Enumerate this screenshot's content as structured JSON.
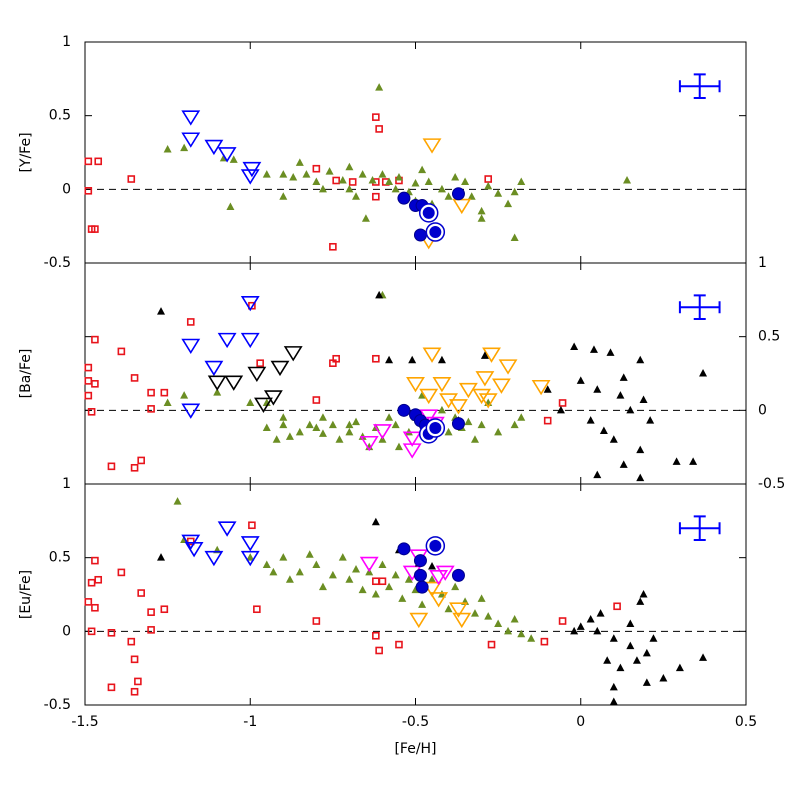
{
  "chart_data": [
    {
      "type": "scatter",
      "ylabel": "[Y/Fe]",
      "xlim": [
        -1.5,
        0.5
      ],
      "xticks": [
        -1.5,
        -1,
        -0.5,
        0,
        0.5
      ],
      "ylim": [
        -0.5,
        1
      ],
      "yticks": [
        -0.5,
        0,
        0.5,
        1
      ],
      "ytick_side": "left",
      "hline": 0,
      "error_bar": {
        "x": 0.36,
        "y": 0.7,
        "xerr": 0.06,
        "yerr": 0.08,
        "color": "#0000ff"
      },
      "series": [
        {
          "marker": "square",
          "color": "#e8141c",
          "x": [
            -1.49,
            -1.46,
            -1.49,
            -1.48,
            -1.47,
            -1.36,
            -0.62,
            -0.61,
            -0.8,
            -0.74,
            -0.69,
            -0.62,
            -0.59,
            -0.55,
            -0.75,
            -0.62,
            -0.28
          ],
          "values": [
            0.19,
            0.19,
            -0.01,
            -0.27,
            -0.27,
            0.07,
            0.49,
            0.41,
            0.14,
            0.06,
            0.05,
            0.05,
            0.05,
            0.06,
            -0.39,
            -0.05,
            0.07
          ]
        },
        {
          "marker": "triangle",
          "color": "#6b8e23",
          "x": [
            -1.25,
            -1.2,
            -1.08,
            -1.05,
            -1.06,
            -0.95,
            -0.9,
            -0.87,
            -0.85,
            -0.83,
            -0.8,
            -0.78,
            -0.76,
            -0.72,
            -0.7,
            -0.68,
            -0.66,
            -0.63,
            -0.61,
            -0.6,
            -0.58,
            -0.56,
            -0.55,
            -0.52,
            -0.5,
            -0.48,
            -0.46,
            -0.45,
            -0.42,
            -0.4,
            -0.38,
            -0.35,
            -0.33,
            -0.3,
            -0.28,
            -0.25,
            -0.22,
            -0.2,
            -0.18,
            -0.3,
            -0.9,
            -0.65,
            -0.2,
            0.14,
            -0.5,
            -0.7
          ],
          "values": [
            0.27,
            0.28,
            0.21,
            0.2,
            -0.12,
            0.1,
            0.1,
            0.08,
            0.18,
            0.1,
            0.05,
            0,
            0.12,
            0.06,
            0,
            -0.05,
            0.1,
            0.06,
            0.69,
            0.1,
            0.05,
            0,
            0.08,
            -0.02,
            0.04,
            0.13,
            0.05,
            -0.1,
            0,
            -0.05,
            0.08,
            0.05,
            -0.05,
            -0.15,
            0.02,
            -0.03,
            -0.1,
            -0.02,
            0.05,
            -0.2,
            -0.05,
            -0.2,
            -0.33,
            0.06,
            -0.08,
            0.15
          ]
        },
        {
          "marker": "tridown",
          "color": "#0000ff",
          "x": [
            -1.18,
            -1.18,
            -1.11,
            -1.07,
            -0.995,
            -1.0
          ],
          "values": [
            0.49,
            0.34,
            0.29,
            0.24,
            0.14,
            0.09
          ]
        },
        {
          "marker": "tridown",
          "color": "#ffa500",
          "x": [
            -0.45,
            -0.36,
            -0.46
          ],
          "values": [
            0.3,
            -0.11,
            -0.35
          ]
        },
        {
          "marker": "circle",
          "color": "#0000cd",
          "x": [
            -0.535,
            -0.5,
            -0.48,
            -0.485,
            -0.37
          ],
          "values": [
            -0.06,
            -0.11,
            -0.11,
            -0.31,
            -0.03
          ]
        },
        {
          "marker": "ring",
          "color": "#0000cd",
          "x": [
            -0.46,
            -0.44
          ],
          "values": [
            -0.16,
            -0.29
          ]
        }
      ]
    },
    {
      "type": "scatter",
      "ylabel": "[Ba/Fe]",
      "xlim": [
        -1.5,
        0.5
      ],
      "xticks": [
        -1.5,
        -1,
        -0.5,
        0,
        0.5
      ],
      "ylim": [
        -0.5,
        1
      ],
      "yticks": [
        -0.5,
        0,
        0.5,
        1
      ],
      "ytick_side": "right",
      "hline": 0,
      "error_bar": {
        "x": 0.36,
        "y": 0.7,
        "xerr": 0.06,
        "yerr": 0.08,
        "color": "#0000ff"
      },
      "series": [
        {
          "marker": "square",
          "color": "#e8141c",
          "x": [
            -1.47,
            -1.49,
            -1.49,
            -1.47,
            -1.49,
            -1.48,
            -1.39,
            -1.35,
            -1.3,
            -1.3,
            -1.26,
            -1.18,
            -0.995,
            -0.97,
            -0.8,
            -0.74,
            -0.75,
            -1.33,
            -1.35,
            -1.42,
            -0.055,
            -0.1,
            -0.62
          ],
          "values": [
            0.48,
            0.29,
            0.2,
            0.18,
            0.1,
            -0.01,
            0.4,
            0.22,
            0.12,
            0.01,
            0.12,
            0.6,
            0.71,
            0.32,
            0.07,
            0.35,
            0.32,
            -0.34,
            -0.39,
            -0.38,
            0.05,
            -0.07,
            0.35
          ]
        },
        {
          "marker": "triangle",
          "color": "#6b8e23",
          "x": [
            -1.25,
            -1.2,
            -1.1,
            -0.95,
            -0.9,
            -0.85,
            -0.82,
            -0.8,
            -0.78,
            -0.75,
            -0.73,
            -0.7,
            -0.68,
            -0.66,
            -0.64,
            -0.62,
            -0.6,
            -0.6,
            -0.58,
            -0.56,
            -0.55,
            -0.52,
            -0.5,
            -0.48,
            -0.46,
            -0.44,
            -0.42,
            -0.4,
            -0.38,
            -0.36,
            -0.34,
            -0.32,
            -0.3,
            -0.28,
            -0.25,
            -0.2,
            -0.18,
            -0.9,
            -0.95,
            -1.0,
            -0.88,
            -0.92,
            -0.7,
            -0.78
          ],
          "values": [
            0.05,
            0.1,
            0.12,
            0.05,
            -0.05,
            -0.15,
            -0.1,
            -0.12,
            -0.16,
            -0.1,
            -0.2,
            -0.15,
            -0.08,
            -0.18,
            -0.25,
            -0.12,
            0.78,
            -0.2,
            -0.05,
            -0.1,
            -0.25,
            -0.15,
            -0.05,
            0.1,
            -0.2,
            -0.1,
            0,
            -0.15,
            -0.05,
            -0.12,
            -0.08,
            -0.2,
            -0.1,
            0.05,
            -0.15,
            -0.1,
            -0.05,
            -0.1,
            -0.12,
            0.05,
            -0.18,
            -0.2,
            -0.1,
            -0.05
          ]
        },
        {
          "marker": "tridown",
          "color": "#0000ff",
          "x": [
            -1.18,
            -1.11,
            -1.07,
            -1.0,
            -1.0,
            -1.18
          ],
          "values": [
            0.44,
            0.29,
            0.48,
            0.48,
            0.73,
            0
          ]
        },
        {
          "marker": "tridown",
          "color": "#000000",
          "x": [
            -1.1,
            -1.05,
            -0.98,
            -0.96,
            -0.93,
            -0.91,
            -0.87
          ],
          "values": [
            0.19,
            0.19,
            0.25,
            0.04,
            0.09,
            0.29,
            0.39
          ]
        },
        {
          "marker": "tridown",
          "color": "#ffa500",
          "x": [
            -0.45,
            -0.27,
            -0.22,
            -0.12,
            -0.29,
            -0.3,
            -0.42,
            -0.5,
            -0.46,
            -0.4,
            -0.37,
            -0.24,
            -0.34,
            -0.28
          ],
          "values": [
            0.38,
            0.38,
            0.3,
            0.16,
            0.22,
            0.1,
            0.18,
            0.18,
            0.1,
            0.07,
            0.03,
            0.17,
            0.14,
            0.07
          ]
        },
        {
          "marker": "tridown",
          "color": "#ff00ff",
          "x": [
            -0.64,
            -0.6,
            -0.51,
            -0.44,
            -0.46,
            -0.51
          ],
          "values": [
            -0.22,
            -0.14,
            -0.27,
            -0.09,
            -0.04,
            -0.19
          ]
        },
        {
          "marker": "triangle",
          "color": "#000000",
          "x": [
            -1.27,
            -0.61,
            -0.58,
            -0.51,
            -0.42,
            -0.29,
            -0.02,
            0.04,
            0.09,
            0.18,
            0.37,
            0.0,
            0.05,
            0.12,
            0.15,
            0.21,
            0.03,
            0.07,
            0.1,
            0.18,
            0.29,
            0.34,
            0.05,
            0.13,
            0.18,
            -0.1,
            -0.37,
            -0.06,
            0.19,
            0.13
          ],
          "values": [
            0.67,
            0.78,
            0.34,
            0.34,
            0.34,
            0.37,
            0.43,
            0.41,
            0.39,
            0.34,
            0.25,
            0.2,
            0.14,
            0.1,
            0,
            -0.07,
            -0.07,
            -0.14,
            -0.2,
            -0.27,
            -0.35,
            -0.35,
            -0.44,
            -0.37,
            -0.46,
            0.14,
            -0.07,
            0,
            0.07,
            0.22
          ]
        },
        {
          "marker": "circle",
          "color": "#0000cd",
          "x": [
            -0.535,
            -0.5,
            -0.485,
            -0.47,
            -0.37
          ],
          "values": [
            0,
            -0.03,
            -0.07,
            -0.1,
            -0.09
          ]
        },
        {
          "marker": "ring",
          "color": "#0000cd",
          "x": [
            -0.46,
            -0.44
          ],
          "values": [
            -0.16,
            -0.12
          ]
        }
      ]
    },
    {
      "type": "scatter",
      "ylabel": "[Eu/Fe]",
      "xlabel": "[Fe/H]",
      "xlim": [
        -1.5,
        0.5
      ],
      "xticks": [
        -1.5,
        -1,
        -0.5,
        0,
        0.5
      ],
      "ylim": [
        -0.5,
        1
      ],
      "yticks": [
        -0.5,
        0,
        0.5,
        1
      ],
      "ytick_side": "left",
      "hline": 0,
      "error_bar": {
        "x": 0.36,
        "y": 0.7,
        "xerr": 0.06,
        "yerr": 0.08,
        "color": "#0000ff"
      },
      "series": [
        {
          "marker": "square",
          "color": "#e8141c",
          "x": [
            -1.47,
            -1.48,
            -1.46,
            -1.49,
            -1.47,
            -1.48,
            -1.39,
            -1.33,
            -1.3,
            -1.26,
            -1.3,
            -1.42,
            -1.36,
            -1.35,
            -1.34,
            -1.35,
            -1.42,
            -1.18,
            -0.995,
            -0.98,
            -0.8,
            -0.62,
            -0.6,
            -0.62,
            -0.61,
            -0.55,
            -0.27,
            -0.11,
            -0.055,
            0.11
          ],
          "values": [
            0.48,
            0.33,
            0.35,
            0.2,
            0.16,
            0,
            0.4,
            0.26,
            0.13,
            0.15,
            0.01,
            -0.01,
            -0.07,
            -0.19,
            -0.34,
            -0.41,
            -0.38,
            0.61,
            0.72,
            0.15,
            0.07,
            0.34,
            0.34,
            -0.03,
            -0.13,
            -0.09,
            -0.09,
            -0.07,
            0.07,
            0.17
          ]
        },
        {
          "marker": "triangle",
          "color": "#6b8e23",
          "x": [
            -1.22,
            -1.2,
            -1.1,
            -1.0,
            -0.95,
            -0.9,
            -0.85,
            -0.8,
            -0.78,
            -0.75,
            -0.72,
            -0.7,
            -0.68,
            -0.66,
            -0.64,
            -0.62,
            -0.6,
            -0.58,
            -0.56,
            -0.54,
            -0.52,
            -0.5,
            -0.48,
            -0.45,
            -0.42,
            -0.4,
            -0.38,
            -0.35,
            -0.32,
            -0.3,
            -0.28,
            -0.25,
            -0.22,
            -0.2,
            -0.18,
            -0.15,
            -0.88,
            -0.82,
            -0.93
          ],
          "values": [
            0.88,
            0.62,
            0.55,
            0.5,
            0.45,
            0.5,
            0.4,
            0.45,
            0.3,
            0.38,
            0.5,
            0.35,
            0.42,
            0.28,
            0.4,
            0.25,
            0.45,
            0.3,
            0.38,
            0.22,
            0.35,
            0.28,
            0.18,
            0.35,
            0.25,
            0.15,
            0.3,
            0.2,
            0.12,
            0.22,
            0.1,
            0.05,
            0,
            0.08,
            -0.02,
            -0.05,
            0.35,
            0.52,
            0.4
          ]
        },
        {
          "marker": "tridown",
          "color": "#0000ff",
          "x": [
            -1.18,
            -1.17,
            -1.11,
            -1.07,
            -1.0,
            -1.0
          ],
          "values": [
            0.61,
            0.56,
            0.5,
            0.7,
            0.6,
            0.5
          ]
        },
        {
          "marker": "tridown",
          "color": "#ffa500",
          "x": [
            -0.49,
            -0.36,
            -0.37,
            -0.45,
            -0.43
          ],
          "values": [
            0.08,
            0.08,
            0.15,
            0.29,
            0.22
          ]
        },
        {
          "marker": "tridown",
          "color": "#ff00ff",
          "x": [
            -0.64,
            -0.51,
            -0.49,
            -0.43,
            -0.41
          ],
          "values": [
            0.46,
            0.4,
            0.51,
            0.37,
            0.4
          ]
        },
        {
          "marker": "triangle",
          "color": "#000000",
          "x": [
            -1.27,
            -0.62,
            -0.55,
            -0.49,
            -0.45,
            0.03,
            0.0,
            0.05,
            0.1,
            0.15,
            0.2,
            0.08,
            0.12,
            0.18,
            0.19,
            0.3,
            0.37,
            0.1,
            0.1,
            0.2,
            0.25,
            0.15,
            0.06,
            -0.02,
            0.22,
            0.17
          ],
          "values": [
            0.5,
            0.74,
            0.55,
            0.46,
            0.44,
            0.08,
            0.03,
            0,
            -0.05,
            -0.1,
            -0.15,
            -0.2,
            -0.25,
            0.2,
            0.25,
            -0.25,
            -0.18,
            -0.38,
            -0.48,
            -0.35,
            -0.32,
            0.05,
            0.12,
            0,
            -0.05,
            -0.2
          ]
        },
        {
          "marker": "circle",
          "color": "#0000cd",
          "x": [
            -0.535,
            -0.485,
            -0.485,
            -0.48,
            -0.37
          ],
          "values": [
            0.56,
            0.48,
            0.38,
            0.3,
            0.38
          ]
        },
        {
          "marker": "ring",
          "color": "#0000cd",
          "x": [
            -0.44
          ],
          "values": [
            0.58
          ]
        }
      ]
    }
  ]
}
